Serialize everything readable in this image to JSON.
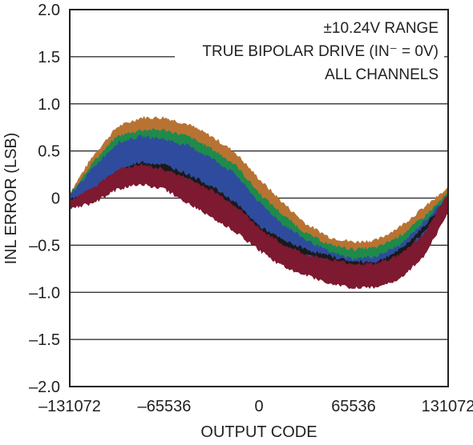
{
  "chart_data": {
    "type": "area",
    "title": "",
    "xlabel": "OUTPUT CODE",
    "ylabel": "INL ERROR (LSB)",
    "xlim": [
      -131072,
      131072
    ],
    "ylim": [
      -2.0,
      2.0
    ],
    "x_ticks": [
      -131072,
      -65536,
      0,
      65536,
      131072
    ],
    "x_tick_labels": [
      "–131072",
      "–65536",
      "0",
      "65536",
      "131072"
    ],
    "y_ticks": [
      2.0,
      1.5,
      1.0,
      0.5,
      0,
      -0.5,
      -1.0,
      -1.5,
      -2.0
    ],
    "y_tick_labels": [
      "2.0",
      "1.5",
      "1.0",
      "0.5",
      "0",
      "–0.5",
      "–1.0",
      "–1.5",
      "–2.0"
    ],
    "grid": "horizontal",
    "annotations": [
      "±10.24V RANGE",
      "TRUE BIPOLAR DRIVE (IN⁻ = 0V)",
      "ALL CHANNELS"
    ],
    "x": [
      -131072,
      -114688,
      -98304,
      -81920,
      -65536,
      -49152,
      -32768,
      -16384,
      0,
      16384,
      32768,
      49152,
      65536,
      81920,
      98304,
      114688,
      131072
    ],
    "series": [
      {
        "color": "#b87333",
        "upper": [
          0.05,
          0.45,
          0.75,
          0.85,
          0.85,
          0.78,
          0.65,
          0.48,
          0.2,
          -0.05,
          -0.28,
          -0.42,
          -0.47,
          -0.45,
          -0.3,
          -0.1,
          0.1
        ],
        "lower": [
          -0.05,
          0.18,
          0.45,
          0.55,
          0.5,
          0.38,
          0.25,
          0.05,
          -0.2,
          -0.42,
          -0.62,
          -0.78,
          -0.83,
          -0.8,
          -0.6,
          -0.35,
          -0.05
        ]
      },
      {
        "color": "#1e8a4c",
        "upper": [
          0.03,
          0.38,
          0.65,
          0.72,
          0.72,
          0.65,
          0.52,
          0.35,
          0.05,
          -0.18,
          -0.38,
          -0.5,
          -0.55,
          -0.53,
          -0.4,
          -0.2,
          0.05
        ],
        "lower": [
          -0.07,
          0.1,
          0.3,
          0.4,
          0.35,
          0.25,
          0.12,
          -0.1,
          -0.35,
          -0.55,
          -0.7,
          -0.8,
          -0.85,
          -0.85,
          -0.7,
          -0.42,
          -0.1
        ]
      },
      {
        "color": "#2f4b9e",
        "upper": [
          0.02,
          0.32,
          0.58,
          0.65,
          0.62,
          0.55,
          0.42,
          0.25,
          -0.05,
          -0.28,
          -0.45,
          -0.58,
          -0.65,
          -0.62,
          -0.5,
          -0.25,
          0.02
        ],
        "lower": [
          -0.05,
          0.08,
          0.25,
          0.3,
          0.25,
          0.15,
          0.02,
          -0.2,
          -0.45,
          -0.62,
          -0.75,
          -0.85,
          -0.9,
          -0.88,
          -0.72,
          -0.42,
          -0.1
        ]
      },
      {
        "color": "#1a1a1a",
        "upper": [
          -0.02,
          0.08,
          0.28,
          0.38,
          0.35,
          0.25,
          0.12,
          -0.05,
          -0.3,
          -0.45,
          -0.55,
          -0.62,
          -0.68,
          -0.68,
          -0.55,
          -0.3,
          0.0
        ],
        "lower": [
          -0.06,
          0.04,
          0.24,
          0.33,
          0.3,
          0.2,
          0.07,
          -0.1,
          -0.35,
          -0.5,
          -0.6,
          -0.67,
          -0.73,
          -0.73,
          -0.6,
          -0.35,
          -0.05
        ]
      },
      {
        "color": "#7d1930",
        "upper": [
          -0.02,
          0.1,
          0.3,
          0.35,
          0.3,
          0.2,
          0.08,
          -0.08,
          -0.32,
          -0.5,
          -0.6,
          -0.66,
          -0.7,
          -0.7,
          -0.6,
          -0.38,
          0.05
        ],
        "lower": [
          -0.1,
          -0.05,
          0.1,
          0.15,
          0.1,
          -0.05,
          -0.2,
          -0.35,
          -0.55,
          -0.72,
          -0.82,
          -0.9,
          -0.95,
          -0.95,
          -0.85,
          -0.6,
          -0.15
        ]
      }
    ]
  }
}
